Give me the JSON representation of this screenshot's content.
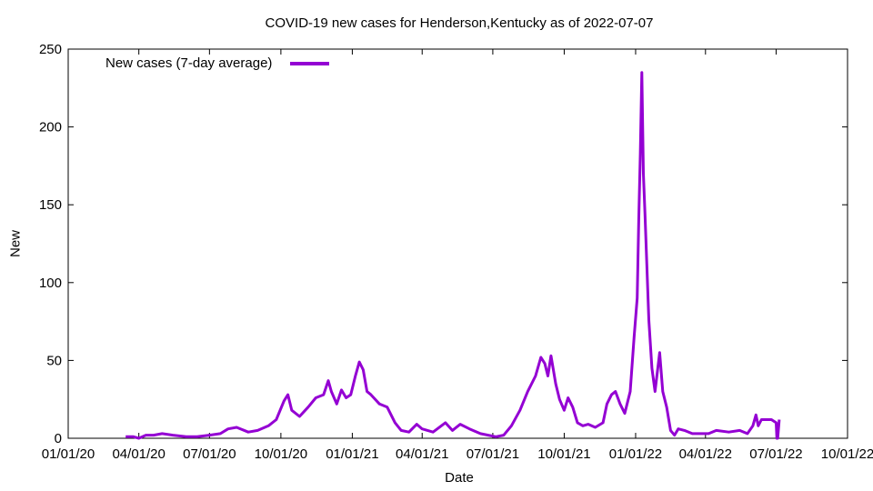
{
  "chart_data": {
    "type": "line",
    "title": "COVID-19 new cases for Henderson,Kentucky as of 2022-07-07",
    "xlabel": "Date",
    "ylabel": "New",
    "xlim": [
      "01/01/20",
      "10/01/22"
    ],
    "ylim": [
      0,
      250
    ],
    "x_ticks": [
      "01/01/20",
      "04/01/20",
      "07/01/20",
      "10/01/20",
      "01/01/21",
      "04/01/21",
      "07/01/21",
      "10/01/21",
      "01/01/22",
      "04/01/22",
      "07/01/22",
      "10/01/22"
    ],
    "y_ticks": [
      0,
      50,
      100,
      150,
      200,
      250
    ],
    "grid": false,
    "legend_position": "top-left",
    "series": [
      {
        "name": "New cases (7-day average)",
        "color": "#9400d3",
        "points": [
          [
            "03/15/20",
            1
          ],
          [
            "03/25/20",
            1
          ],
          [
            "04/01/20",
            0
          ],
          [
            "04/10/20",
            2
          ],
          [
            "04/20/20",
            2
          ],
          [
            "05/01/20",
            3
          ],
          [
            "05/15/20",
            2
          ],
          [
            "06/01/20",
            1
          ],
          [
            "06/15/20",
            1
          ],
          [
            "07/01/20",
            2
          ],
          [
            "07/15/20",
            3
          ],
          [
            "07/25/20",
            6
          ],
          [
            "08/05/20",
            7
          ],
          [
            "08/20/20",
            4
          ],
          [
            "09/01/20",
            5
          ],
          [
            "09/15/20",
            8
          ],
          [
            "09/25/20",
            12
          ],
          [
            "10/05/20",
            24
          ],
          [
            "10/10/20",
            28
          ],
          [
            "10/15/20",
            18
          ],
          [
            "10/25/20",
            14
          ],
          [
            "11/05/20",
            20
          ],
          [
            "11/15/20",
            26
          ],
          [
            "11/25/20",
            28
          ],
          [
            "12/01/20",
            37
          ],
          [
            "12/05/20",
            30
          ],
          [
            "12/12/20",
            22
          ],
          [
            "12/18/20",
            31
          ],
          [
            "12/24/20",
            26
          ],
          [
            "12/30/20",
            28
          ],
          [
            "01/05/21",
            40
          ],
          [
            "01/10/21",
            49
          ],
          [
            "01/15/21",
            44
          ],
          [
            "01/20/21",
            30
          ],
          [
            "01/25/21",
            28
          ],
          [
            "02/05/21",
            22
          ],
          [
            "02/15/21",
            20
          ],
          [
            "02/25/21",
            10
          ],
          [
            "03/05/21",
            5
          ],
          [
            "03/15/21",
            4
          ],
          [
            "03/25/21",
            9
          ],
          [
            "04/01/21",
            6
          ],
          [
            "04/15/21",
            4
          ],
          [
            "05/01/21",
            10
          ],
          [
            "05/10/21",
            5
          ],
          [
            "05/20/21",
            9
          ],
          [
            "06/01/21",
            6
          ],
          [
            "06/15/21",
            3
          ],
          [
            "06/25/21",
            2
          ],
          [
            "07/05/21",
            1
          ],
          [
            "07/15/21",
            2
          ],
          [
            "07/25/21",
            8
          ],
          [
            "08/05/21",
            18
          ],
          [
            "08/15/21",
            30
          ],
          [
            "08/25/21",
            40
          ],
          [
            "09/01/21",
            52
          ],
          [
            "09/06/21",
            48
          ],
          [
            "09/10/21",
            40
          ],
          [
            "09/14/21",
            53
          ],
          [
            "09/20/21",
            35
          ],
          [
            "09/25/21",
            25
          ],
          [
            "10/01/21",
            18
          ],
          [
            "10/06/21",
            26
          ],
          [
            "10/12/21",
            20
          ],
          [
            "10/18/21",
            10
          ],
          [
            "10/25/21",
            8
          ],
          [
            "11/01/21",
            9
          ],
          [
            "11/10/21",
            7
          ],
          [
            "11/20/21",
            10
          ],
          [
            "11/25/21",
            22
          ],
          [
            "12/01/21",
            28
          ],
          [
            "12/06/21",
            30
          ],
          [
            "12/12/21",
            22
          ],
          [
            "12/18/21",
            16
          ],
          [
            "12/25/21",
            30
          ],
          [
            "12/30/21",
            65
          ],
          [
            "01/03/22",
            90
          ],
          [
            "01/05/22",
            140
          ],
          [
            "01/07/22",
            182
          ],
          [
            "01/09/22",
            235
          ],
          [
            "01/11/22",
            170
          ],
          [
            "01/13/22",
            145
          ],
          [
            "01/18/22",
            76
          ],
          [
            "01/22/22",
            45
          ],
          [
            "01/26/22",
            30
          ],
          [
            "02/01/22",
            55
          ],
          [
            "02/05/22",
            30
          ],
          [
            "02/10/22",
            20
          ],
          [
            "02/15/22",
            5
          ],
          [
            "02/20/22",
            2
          ],
          [
            "02/25/22",
            6
          ],
          [
            "03/05/22",
            5
          ],
          [
            "03/15/22",
            3
          ],
          [
            "03/25/22",
            3
          ],
          [
            "04/05/22",
            3
          ],
          [
            "04/15/22",
            5
          ],
          [
            "05/01/22",
            4
          ],
          [
            "05/15/22",
            5
          ],
          [
            "05/25/22",
            3
          ],
          [
            "06/01/22",
            8
          ],
          [
            "06/05/22",
            15
          ],
          [
            "06/08/22",
            8
          ],
          [
            "06/12/22",
            12
          ],
          [
            "06/25/22",
            12
          ],
          [
            "07/01/22",
            10
          ],
          [
            "07/02/22",
            0
          ],
          [
            "07/03/22",
            0
          ],
          [
            "07/05/22",
            12
          ]
        ]
      }
    ]
  }
}
